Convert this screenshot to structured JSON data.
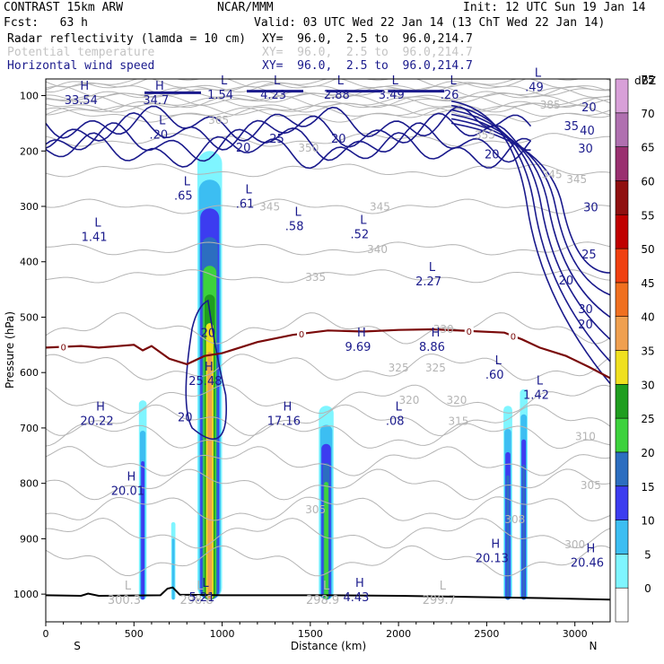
{
  "header": {
    "left1": "CONTRAST 15km ARW",
    "center1": "NCAR/MMM",
    "right1": "Init: 12 UTC Sun 19 Jan 14",
    "left2": "Fcst:   63 h",
    "right2": "Valid: 03 UTC Wed 22 Jan 14 (13 ChT Wed 22 Jan 14)",
    "field1_name": "Radar reflectivity (lamda = 10 cm)",
    "field1_xy": "XY=  96.0,  2.5 to  96.0,214.7",
    "field2_name": "Potential temperature",
    "field2_xy": "XY=  96.0,  2.5 to  96.0,214.7",
    "field3_name": "Horizontal wind speed",
    "field3_xy": "XY=  96.0,  2.5 to  96.0,214.7"
  },
  "colors": {
    "wind": "#1a1a8c",
    "theta": "#b4b4b4",
    "freezing": "#7a0a0a",
    "terrain": "#000000"
  },
  "chart_data": {
    "type": "cross-section",
    "title": "Radar reflectivity / Potential temperature / Horizontal wind speed",
    "xlabel": "Distance (km)",
    "ylabel": "Pressure (hPa)",
    "xlim": [
      0,
      3200
    ],
    "ylim": [
      1050,
      70
    ],
    "x_ticks": [
      0,
      500,
      1000,
      1500,
      2000,
      2500,
      3000
    ],
    "y_ticks": [
      100,
      200,
      300,
      400,
      500,
      600,
      700,
      800,
      900,
      1000
    ],
    "endpoint_left": "S",
    "endpoint_right": "N",
    "colorbar": {
      "unit": "dBZ",
      "levels": [
        0,
        5,
        10,
        15,
        20,
        25,
        30,
        35,
        40,
        45,
        50,
        55,
        60,
        65,
        70,
        75
      ],
      "colors": [
        "#ffffff",
        "#7ff5ff",
        "#3cbef2",
        "#3c3cf0",
        "#2c6ec0",
        "#3dd23d",
        "#1f9e1f",
        "#f0e020",
        "#f0a050",
        "#f07020",
        "#f04010",
        "#c00000",
        "#901010",
        "#9a3070",
        "#b070b0",
        "#d8a0d8"
      ]
    },
    "theta_labels": [
      {
        "x": 980,
        "p": 143,
        "text": "365"
      },
      {
        "x": 1490,
        "p": 193,
        "text": "350"
      },
      {
        "x": 1270,
        "p": 299,
        "text": "345"
      },
      {
        "x": 1895,
        "p": 299,
        "text": "345"
      },
      {
        "x": 1880,
        "p": 376,
        "text": "340"
      },
      {
        "x": 1530,
        "p": 426,
        "text": "335"
      },
      {
        "x": 2255,
        "p": 520,
        "text": "330"
      },
      {
        "x": 2000,
        "p": 590,
        "text": "325"
      },
      {
        "x": 2210,
        "p": 590,
        "text": "325"
      },
      {
        "x": 2060,
        "p": 648,
        "text": "320"
      },
      {
        "x": 2330,
        "p": 648,
        "text": "320"
      },
      {
        "x": 2340,
        "p": 686,
        "text": "315"
      },
      {
        "x": 3060,
        "p": 714,
        "text": "310"
      },
      {
        "x": 3090,
        "p": 802,
        "text": "305"
      },
      {
        "x": 1530,
        "p": 846,
        "text": "305"
      },
      {
        "x": 2660,
        "p": 864,
        "text": "308"
      },
      {
        "x": 3000,
        "p": 909,
        "text": "300"
      },
      {
        "x": 2490,
        "p": 170,
        "text": "355"
      },
      {
        "x": 2860,
        "p": 115,
        "text": "385"
      },
      {
        "x": 2870,
        "p": 241,
        "text": "345"
      },
      {
        "x": 3010,
        "p": 250,
        "text": "345"
      }
    ],
    "wind_labels": [
      {
        "x": 1120,
        "p": 193,
        "text": "20"
      },
      {
        "x": 1310,
        "p": 177,
        "text": "25"
      },
      {
        "x": 1660,
        "p": 177,
        "text": "20"
      },
      {
        "x": 2530,
        "p": 205,
        "text": "20"
      },
      {
        "x": 3080,
        "p": 120,
        "text": "20"
      },
      {
        "x": 2980,
        "p": 154,
        "text": "35"
      },
      {
        "x": 3070,
        "p": 162,
        "text": "40"
      },
      {
        "x": 3060,
        "p": 195,
        "text": "30"
      },
      {
        "x": 3090,
        "p": 301,
        "text": "30"
      },
      {
        "x": 3080,
        "p": 386,
        "text": "25"
      },
      {
        "x": 2950,
        "p": 433,
        "text": "20"
      },
      {
        "x": 3060,
        "p": 485,
        "text": "30"
      },
      {
        "x": 3060,
        "p": 512,
        "text": "20"
      },
      {
        "x": 920,
        "p": 528,
        "text": "20"
      },
      {
        "x": 790,
        "p": 680,
        "text": "20"
      }
    ],
    "freezing_level_label": "0",
    "freezing_level_points": [
      [
        0,
        555
      ],
      [
        200,
        552
      ],
      [
        300,
        555
      ],
      [
        500,
        550
      ],
      [
        550,
        560
      ],
      [
        600,
        552
      ],
      [
        700,
        575
      ],
      [
        800,
        585
      ],
      [
        900,
        570
      ],
      [
        1000,
        565
      ],
      [
        1200,
        545
      ],
      [
        1400,
        532
      ],
      [
        1600,
        524
      ],
      [
        1800,
        526
      ],
      [
        2000,
        523
      ],
      [
        2200,
        522
      ],
      [
        2400,
        525
      ],
      [
        2600,
        528
      ],
      [
        2700,
        540
      ],
      [
        2800,
        555
      ],
      [
        2950,
        570
      ],
      [
        3080,
        590
      ],
      [
        3200,
        610
      ]
    ],
    "extrema": [
      {
        "x": 200,
        "p": 93,
        "kind": "H",
        "value": "33.54"
      },
      {
        "x": 625,
        "p": 93,
        "kind": "H",
        "value": "34.7"
      },
      {
        "x": 990,
        "p": 83,
        "kind": "L",
        "value": "1.54"
      },
      {
        "x": 1290,
        "p": 83,
        "kind": "L",
        "value": "4.23"
      },
      {
        "x": 1650,
        "p": 83,
        "kind": "L",
        "value": "2.88"
      },
      {
        "x": 1960,
        "p": 83,
        "kind": "L",
        "value": "3.49"
      },
      {
        "x": 2290,
        "p": 83,
        "kind": "L",
        "value": ".26"
      },
      {
        "x": 2770,
        "p": 69,
        "kind": "L",
        "value": ".49"
      },
      {
        "x": 640,
        "p": 155,
        "kind": "L",
        "value": ".20"
      },
      {
        "x": 780,
        "p": 265,
        "kind": "L",
        "value": ".65"
      },
      {
        "x": 1130,
        "p": 280,
        "kind": "L",
        "value": ".61"
      },
      {
        "x": 1410,
        "p": 320,
        "kind": "L",
        "value": ".58"
      },
      {
        "x": 1780,
        "p": 335,
        "kind": "L",
        "value": ".52"
      },
      {
        "x": 275,
        "p": 340,
        "kind": "L",
        "value": "1.41"
      },
      {
        "x": 2170,
        "p": 420,
        "kind": "L",
        "value": "2.27"
      },
      {
        "x": 1770,
        "p": 538,
        "kind": "H",
        "value": "9.69"
      },
      {
        "x": 2190,
        "p": 538,
        "kind": "H",
        "value": "8.86"
      },
      {
        "x": 2545,
        "p": 588,
        "kind": "L",
        "value": ".60"
      },
      {
        "x": 905,
        "p": 600,
        "kind": "H",
        "value": "25.48"
      },
      {
        "x": 2780,
        "p": 625,
        "kind": "L",
        "value": "1.42"
      },
      {
        "x": 290,
        "p": 672,
        "kind": "H",
        "value": "20.22"
      },
      {
        "x": 1350,
        "p": 672,
        "kind": "H",
        "value": "17.16"
      },
      {
        "x": 1980,
        "p": 672,
        "kind": "L",
        "value": ".08"
      },
      {
        "x": 465,
        "p": 798,
        "kind": "H",
        "value": "20.01"
      },
      {
        "x": 2530,
        "p": 920,
        "kind": "H",
        "value": "20.13"
      },
      {
        "x": 3070,
        "p": 928,
        "kind": "H",
        "value": "20.46"
      },
      {
        "x": 445,
        "p": 995,
        "kind": "L",
        "value": "300.3"
      },
      {
        "x": 855,
        "p": 995,
        "kind": "L",
        "value": "298.8"
      },
      {
        "x": 1570,
        "p": 995,
        "kind": "L",
        "value": "298.9"
      },
      {
        "x": 2230,
        "p": 995,
        "kind": "L",
        "value": "299.7"
      },
      {
        "x": 885,
        "p": 990,
        "kind": "L",
        "value": "5.21"
      },
      {
        "x": 1760,
        "p": 990,
        "kind": "H",
        "value": "4.43"
      }
    ],
    "reflectivity_cells": [
      {
        "name": "main-convective-tower",
        "x": 930,
        "half_width": 70,
        "top": 200,
        "bottom": 1010,
        "peak_dbz": 40
      },
      {
        "name": "cell-550km",
        "x": 550,
        "half_width": 22,
        "top": 650,
        "bottom": 1010,
        "peak_dbz": 15
      },
      {
        "name": "cell-720km",
        "x": 723,
        "half_width": 12,
        "top": 870,
        "bottom": 1010,
        "peak_dbz": 10
      },
      {
        "name": "cell-1590km",
        "x": 1590,
        "half_width": 42,
        "top": 660,
        "bottom": 1010,
        "peak_dbz": 25
      },
      {
        "name": "cell-2620km",
        "x": 2620,
        "half_width": 25,
        "top": 660,
        "bottom": 1010,
        "peak_dbz": 20
      },
      {
        "name": "cell-2710km",
        "x": 2710,
        "half_width": 22,
        "top": 630,
        "bottom": 1010,
        "peak_dbz": 20
      }
    ],
    "terrain_profile": [
      [
        0,
        1002
      ],
      [
        200,
        1003
      ],
      [
        240,
        999
      ],
      [
        300,
        1003
      ],
      [
        650,
        1002
      ],
      [
        690,
        990
      ],
      [
        720,
        988
      ],
      [
        760,
        1001
      ],
      [
        1000,
        1002
      ],
      [
        1600,
        1002
      ],
      [
        2000,
        1003
      ],
      [
        2400,
        1005
      ],
      [
        2800,
        1007
      ],
      [
        3200,
        1010
      ]
    ]
  }
}
